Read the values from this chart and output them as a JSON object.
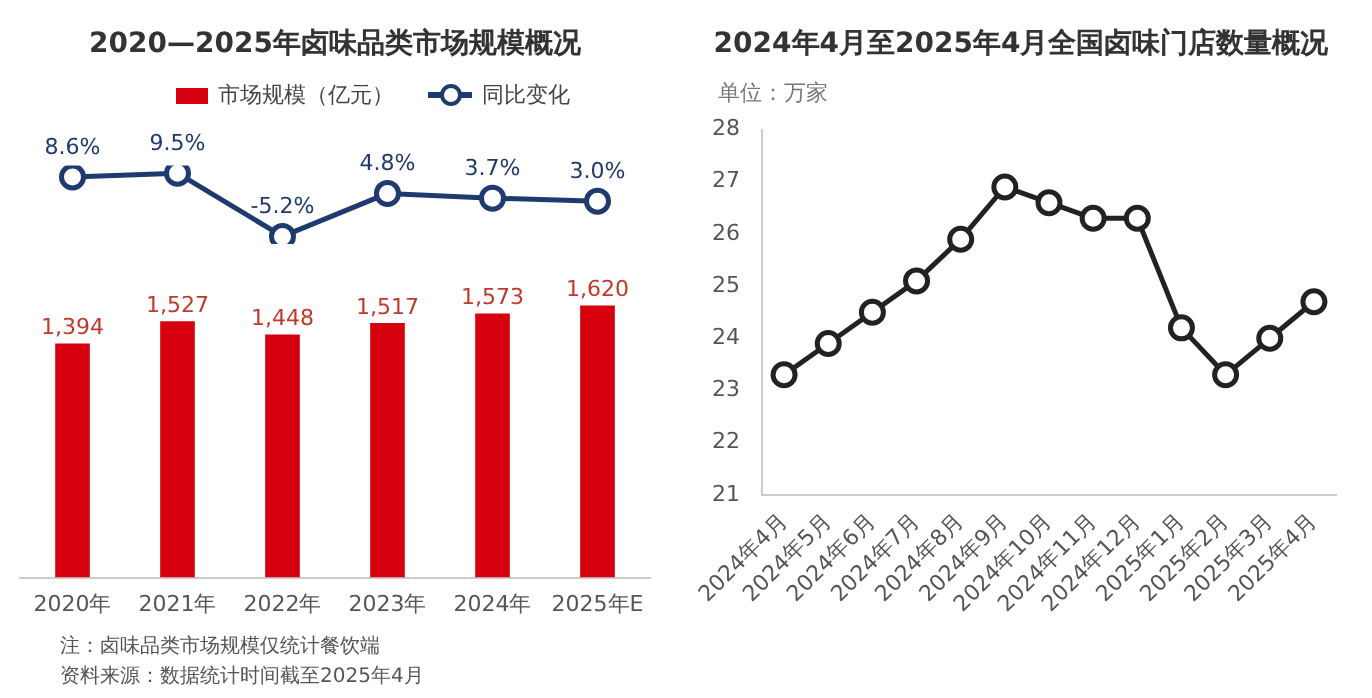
{
  "chart_data": [
    {
      "type": "line",
      "title": "2020—2025年卤味品类市场规模概况",
      "categories": [
        null,
        null,
        null,
        null,
        null,
        null
      ],
      "series": [
        {
          "name": "同比变化",
          "color": "#1f3a6e",
          "values": [
            8.6,
            9.5,
            -5.2,
            4.8,
            3.7,
            3.0
          ],
          "value_labels": [
            "8.6%",
            "9.5%",
            "-5.2%",
            "4.8%",
            "3.7%",
            "3.0%"
          ]
        }
      ],
      "marker": "circle",
      "legend": "top",
      "grid": false,
      "data_labels": true,
      "tick_labels": false
    },
    {
      "type": "bar",
      "categories": [
        "2020年",
        "2021年",
        "2022年",
        "2023年",
        "2024年",
        "2025年E"
      ],
      "series": [
        {
          "name": "市场规模（亿元）",
          "color": "#d7000f",
          "values": [
            1394,
            1527,
            1448,
            1517,
            1573,
            1620
          ],
          "value_labels": [
            "1,394",
            "1,527",
            "1,448",
            "1,517",
            "1,573",
            "1,620"
          ]
        }
      ],
      "legend": "top",
      "grid": false,
      "data_labels": true,
      "tick_labels": "x",
      "annotations": [
        "注：卤味品类市场规模仅统计餐饮端",
        "资料来源：数据统计时间截至2025年4月"
      ]
    },
    {
      "type": "line",
      "title": "2024年4月至2025年4月全国卤味门店数量概况",
      "ylabel": "单位：万家",
      "categories": [
        "2024年4月",
        "2024年5月",
        "2024年6月",
        "2024年7月",
        "2024年8月",
        "2024年9月",
        "2024年10月",
        "2024年11月",
        "2024年12月",
        "2025年1月",
        "2025年2月",
        "2025年3月",
        "2025年4月"
      ],
      "series": [
        {
          "color": "#222222",
          "values": [
            23.3,
            23.9,
            24.5,
            25.1,
            25.9,
            26.9,
            26.6,
            26.3,
            26.3,
            24.2,
            23.3,
            24.0,
            24.7
          ]
        }
      ],
      "ylim": [
        21,
        28
      ],
      "yticks": [
        21,
        22,
        23,
        24,
        25,
        26,
        27,
        28
      ],
      "marker": "circle",
      "line_style": "solid",
      "grid": false,
      "legend": false
    }
  ]
}
